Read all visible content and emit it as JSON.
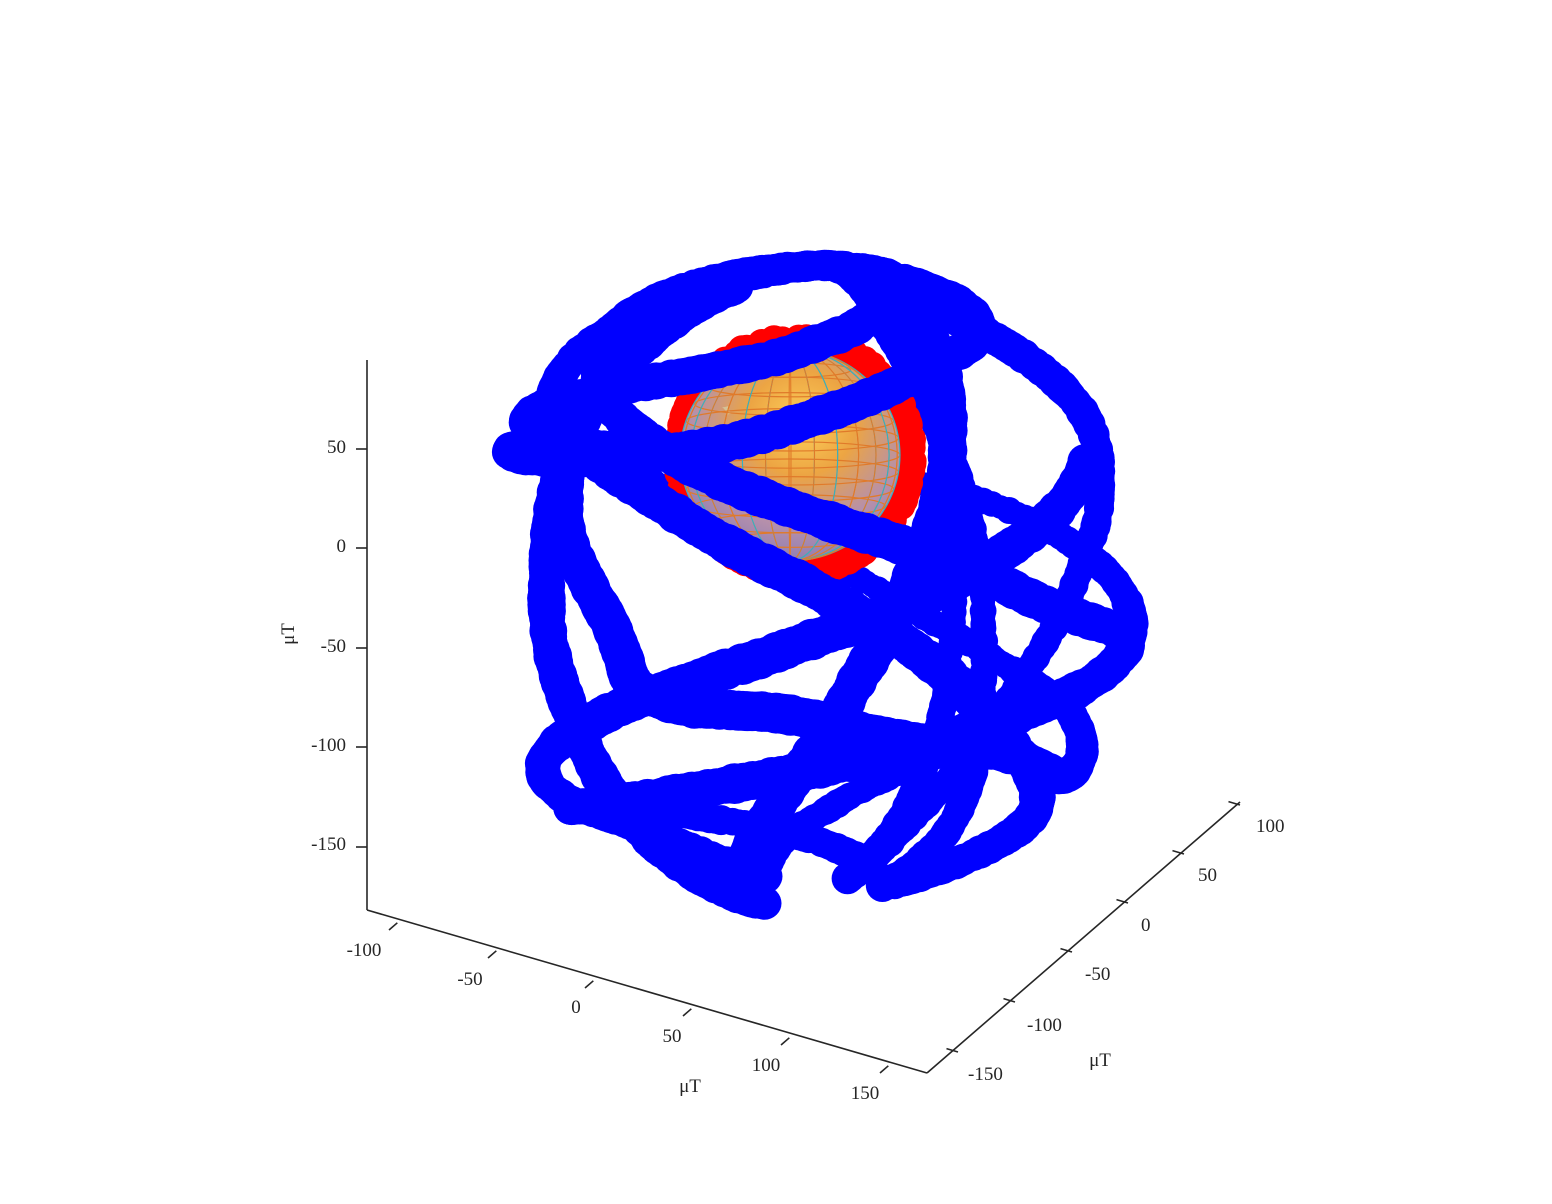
{
  "chart_data": {
    "type": "scatter",
    "subtype": "3d-scatter",
    "title": "",
    "xlabel": "μT",
    "ylabel": "μT",
    "zlabel": "μT",
    "xlim": [
      -110,
      170
    ],
    "ylim": [
      -175,
      110
    ],
    "zlim": [
      -180,
      90
    ],
    "x_ticks": [
      "-100",
      "-50",
      "0",
      "50",
      "100",
      "150"
    ],
    "y_ticks": [
      "-150",
      "-100",
      "-50",
      "0",
      "50",
      "100"
    ],
    "z_ticks": [
      "-150",
      "-100",
      "-50",
      "0",
      "50"
    ],
    "grid": false,
    "series": [
      {
        "kind": "scatter",
        "color": "#0000ff",
        "shape": "sphere of radius ~135 μT",
        "center": [
          25,
          -30,
          -50
        ]
      },
      {
        "kind": "scatter",
        "color": "#ff0000",
        "shape": "sphere of radius ~45 μT",
        "center": [
          0,
          40,
          15
        ]
      },
      {
        "kind": "surface-mesh",
        "colormap": "parula",
        "shape": "ellipsoid fit"
      }
    ]
  }
}
